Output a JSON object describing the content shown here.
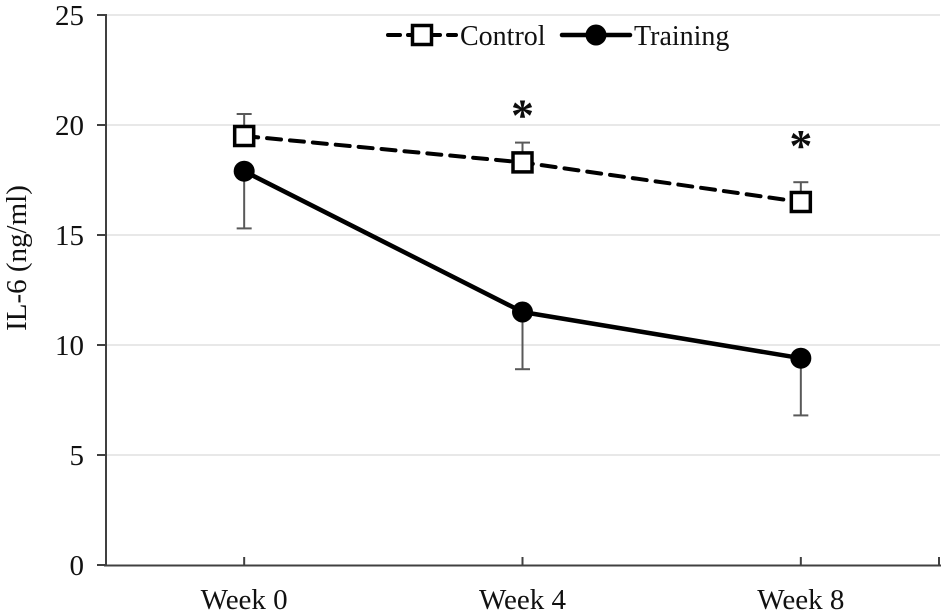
{
  "chart_data": {
    "type": "line",
    "title": "",
    "xlabel": "",
    "ylabel": "IL-6 (ng/ml)",
    "categories": [
      "Week 0",
      "Week 4",
      "Week 8"
    ],
    "ylim": [
      0,
      25
    ],
    "yticks": [
      0,
      5,
      10,
      15,
      20,
      25
    ],
    "grid": true,
    "legend_position": "top-center",
    "series": [
      {
        "name": "Control",
        "values": [
          19.5,
          18.3,
          16.5
        ],
        "error_up": [
          1.0,
          0.9,
          0.9
        ],
        "error_down": [
          0,
          0,
          0
        ],
        "marker": "open-square",
        "line_style": "dashed",
        "color": "#000000"
      },
      {
        "name": "Training",
        "values": [
          17.9,
          11.5,
          9.4
        ],
        "error_up": [
          0,
          0,
          0
        ],
        "error_down": [
          2.6,
          2.6,
          2.6
        ],
        "marker": "filled-circle",
        "line_style": "solid",
        "color": "#000000"
      }
    ],
    "annotations": [
      {
        "text": "*",
        "category": "Week 4",
        "value": 20.7
      },
      {
        "text": "*",
        "category": "Week 8",
        "value": 19.3
      }
    ]
  },
  "colors": {
    "background": "#ffffff",
    "axis": "#404040",
    "gridline": "#d9d9d9",
    "error_bar": "#595959",
    "text": "#111111",
    "series": "#000000"
  }
}
